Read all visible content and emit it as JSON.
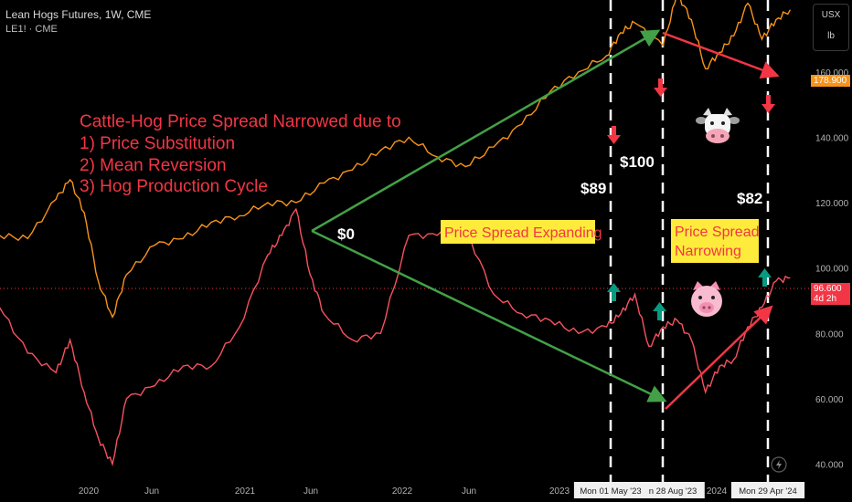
{
  "header": {
    "title": "Lean Hogs Futures, 1W, CME",
    "subtitle": "LE1! · CME"
  },
  "price_unit": {
    "currency": "USX",
    "unit": "lb"
  },
  "price_tags": {
    "cattle": {
      "value": "178.900",
      "color": "#f7931a"
    },
    "hog": {
      "value": "96.600",
      "sub": "4d 2h",
      "color": "#f23645"
    }
  },
  "annotations": {
    "headline": [
      "Cattle-Hog Price Spread Narrowed due to",
      "1) Price Substitution",
      "2) Mean Reversion",
      "3) Hog Production Cycle"
    ],
    "spread_expanding": "Price Spread Expanding",
    "spread_narrowing": [
      "Price Spread",
      "Narrowing"
    ],
    "spreads": [
      "$0",
      "$89",
      "$100",
      "$82"
    ],
    "cow_icon": "cow-face-icon",
    "pig_icon": "pig-face-icon"
  },
  "colors": {
    "cattle_line": "#f7931a",
    "hog_line": "#f7525f",
    "expand_arrow": "#43a047",
    "narrow_arrow": "#f23645",
    "label_bg": "#ffeb3b"
  },
  "chart_data": {
    "type": "line",
    "x_ticks": [
      "2020",
      "Jun",
      "2021",
      "Jun",
      "2022",
      "Jun",
      "2023",
      "Mon 01 May '23",
      "n 28 Aug '23",
      "2024",
      "Mon 29 Apr '24"
    ],
    "y_ticks": [
      "40.000",
      "60.000",
      "80.000",
      "100.000",
      "120.000",
      "140.000",
      "160.000"
    ],
    "ylim": [
      34,
      182
    ],
    "grid": false,
    "series": [
      {
        "color": "#f7931a",
        "x": [
          "2019-09",
          "2019-11",
          "2020-01",
          "2020-02",
          "2020-03",
          "2020-04",
          "2020-05",
          "2020-06",
          "2020-08",
          "2020-10",
          "2020-12",
          "2021-02",
          "2021-04",
          "2021-06",
          "2021-08",
          "2021-10",
          "2021-12",
          "2022-02",
          "2022-04",
          "2022-06",
          "2022-08",
          "2022-10",
          "2022-12",
          "2023-02",
          "2023-04",
          "2023-05",
          "2023-06",
          "2023-08",
          "2023-09",
          "2023-10",
          "2023-11",
          "2023-12",
          "2024-01",
          "2024-02",
          "2024-03",
          "2024-04",
          "2024-05"
        ],
        "values": [
          110,
          109,
          121,
          127,
          117,
          96,
          85,
          98,
          107,
          109,
          114,
          116,
          120,
          120,
          126,
          130,
          136,
          140,
          134,
          131,
          137,
          144,
          154,
          160,
          165,
          172,
          175,
          168,
          184,
          176,
          161,
          166,
          171,
          181,
          170,
          176,
          179
        ]
      },
      {
        "color": "#f7525f",
        "x": [
          "2019-09",
          "2019-11",
          "2020-01",
          "2020-02",
          "2020-03",
          "2020-04",
          "2020-05",
          "2020-06",
          "2020-08",
          "2020-10",
          "2020-12",
          "2021-02",
          "2021-04",
          "2021-05",
          "2021-06",
          "2021-07",
          "2021-08",
          "2021-10",
          "2021-12",
          "2022-02",
          "2022-04",
          "2022-06",
          "2022-08",
          "2022-10",
          "2022-12",
          "2023-02",
          "2023-04",
          "2023-05",
          "2023-06",
          "2023-07",
          "2023-08",
          "2023-09",
          "2023-10",
          "2023-11",
          "2023-12",
          "2024-01",
          "2024-02",
          "2024-03",
          "2024-04",
          "2024-05"
        ],
        "values": [
          88,
          74,
          68,
          78,
          62,
          48,
          40,
          60,
          64,
          70,
          70,
          82,
          104,
          110,
          118,
          98,
          86,
          78,
          80,
          110,
          110,
          112,
          92,
          86,
          84,
          80,
          82,
          86,
          92,
          76,
          82,
          84,
          78,
          62,
          70,
          72,
          82,
          88,
          96,
          97
        ]
      }
    ]
  }
}
